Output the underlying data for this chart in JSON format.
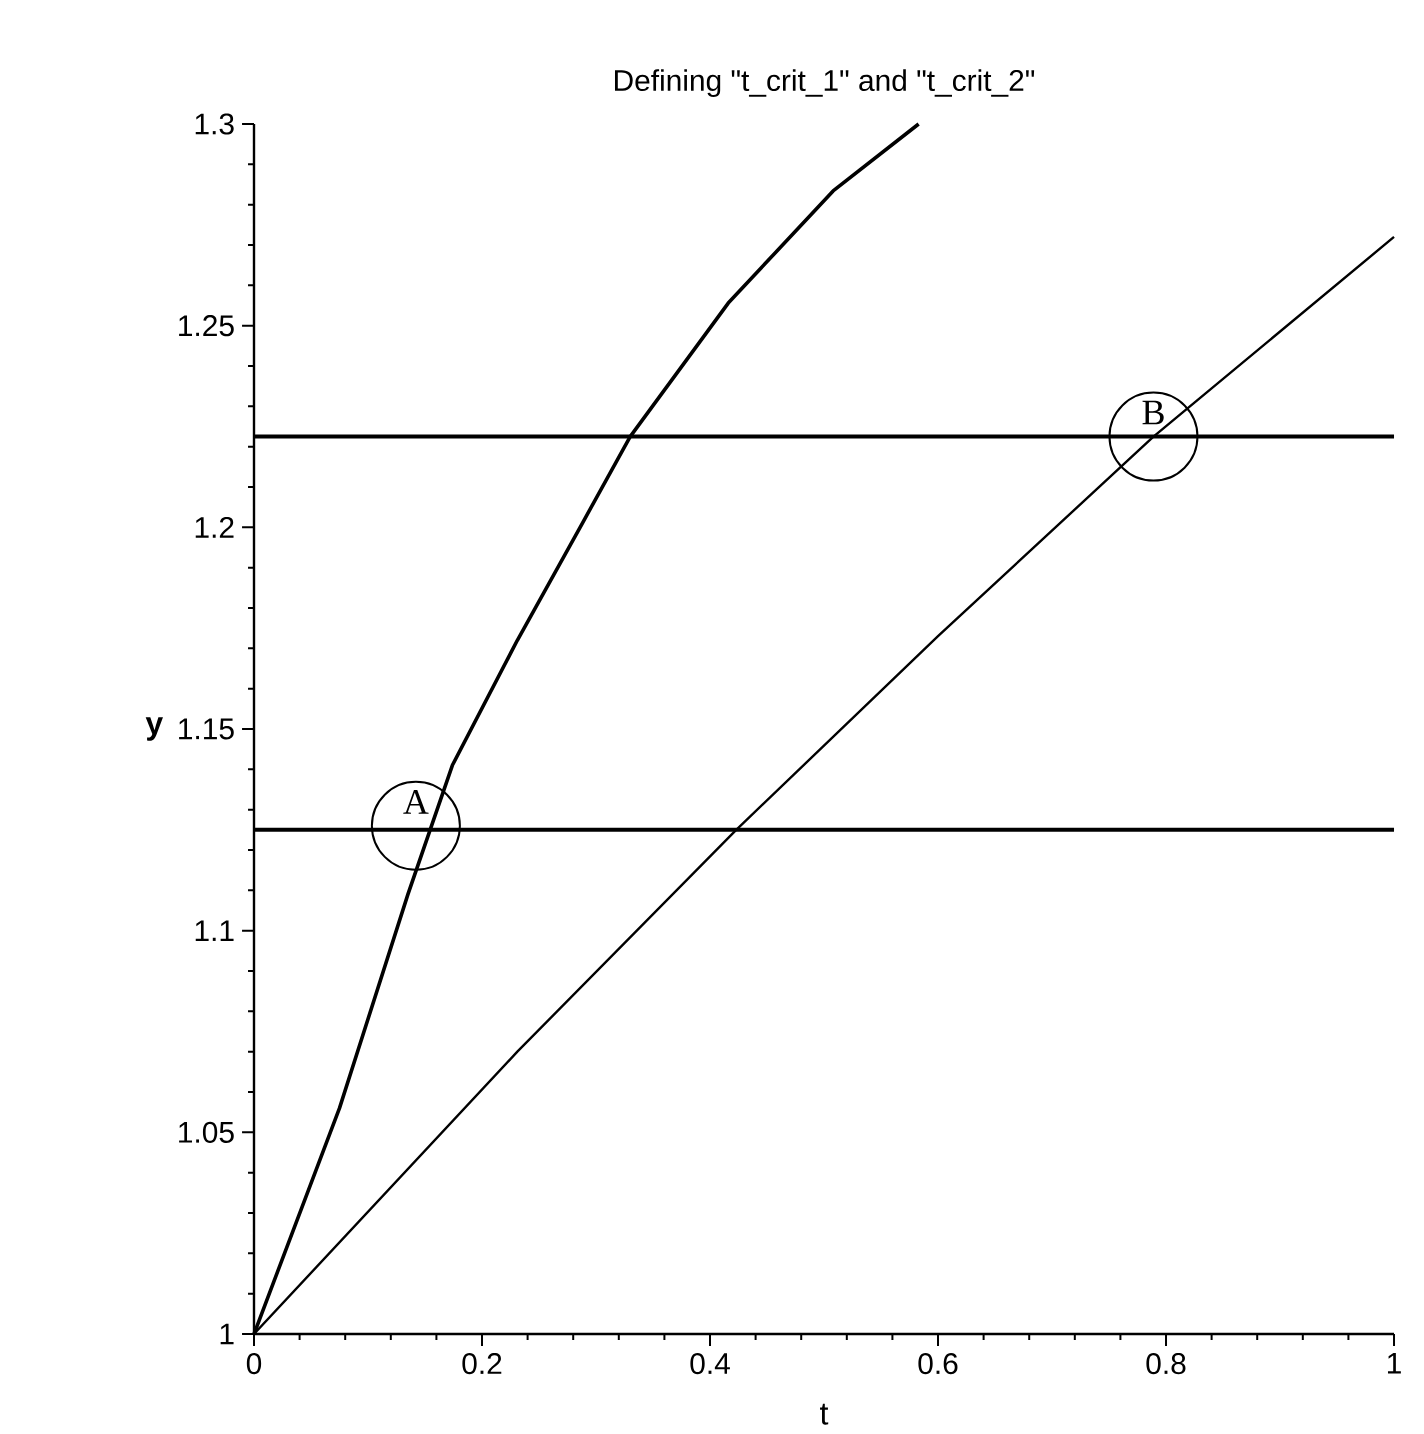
{
  "chart_data": {
    "type": "line",
    "title": "Defining \"t_crit_1\" and \"t_crit_2\"",
    "xlabel": "t",
    "ylabel": "y",
    "xlim": [
      0,
      1
    ],
    "ylim": [
      1,
      1.3
    ],
    "xticks": [
      0,
      0.2,
      0.4,
      0.6,
      0.8,
      1
    ],
    "yticks": [
      1,
      1.05,
      1.1,
      1.15,
      1.2,
      1.25,
      1.3
    ],
    "series": [
      {
        "color": "#000000",
        "x": [
          0,
          0.075,
          0.135,
          0.174,
          0.231,
          0.288,
          0.33,
          0.416,
          0.508,
          0.583
        ],
        "values": [
          1,
          1.056,
          1.109,
          1.141,
          1.172,
          1.201,
          1.2225,
          1.2556,
          1.2834,
          1.3
        ]
      },
      {
        "color": "#000000",
        "x": [
          0,
          0.231,
          0.423,
          0.6,
          0.789,
          1
        ],
        "values": [
          1,
          1.07,
          1.125,
          1.173,
          1.2225,
          1.272
        ]
      }
    ],
    "ref_lines": [
      {
        "axis": "y",
        "value": 1.125,
        "color": "#000000"
      },
      {
        "axis": "y",
        "value": 1.2225,
        "color": "#000000"
      }
    ],
    "annotations": [
      {
        "text": "A",
        "x": 0.142,
        "y": 1.126
      },
      {
        "text": "B",
        "x": 0.789,
        "y": 1.2225
      }
    ]
  }
}
